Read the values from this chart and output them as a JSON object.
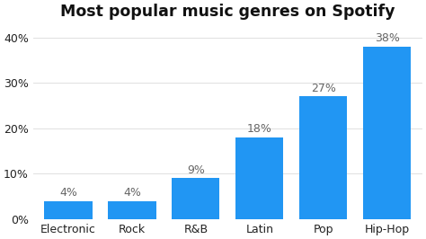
{
  "title": "Most popular music genres on Spotify",
  "categories": [
    "Electronic",
    "Rock",
    "R&B",
    "Latin",
    "Pop",
    "Hip-Hop"
  ],
  "values": [
    4,
    4,
    9,
    18,
    27,
    38
  ],
  "bar_color": "#2196F3",
  "label_color": "#666666",
  "title_color": "#111111",
  "background_color": "#FFFFFF",
  "ylim": [
    0,
    43
  ],
  "yticks": [
    0,
    10,
    20,
    30,
    40
  ],
  "title_fontsize": 12.5,
  "label_fontsize": 9,
  "tick_fontsize": 9
}
